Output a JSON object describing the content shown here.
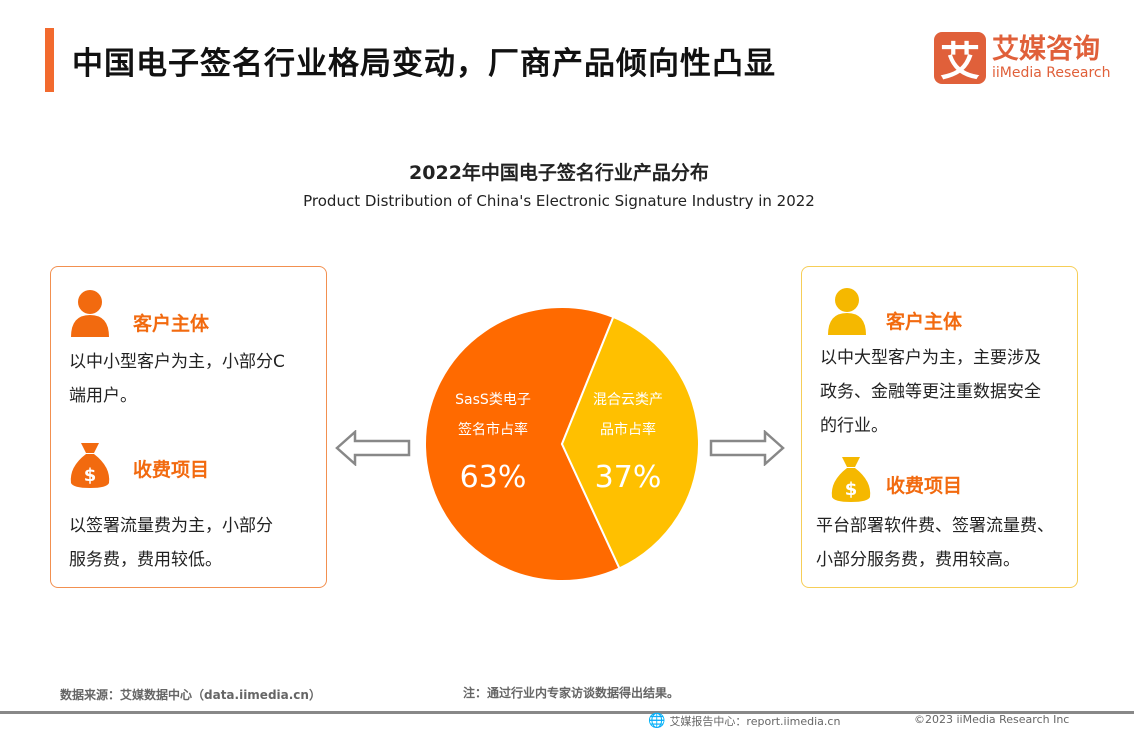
{
  "header": {
    "title": "中国电子签名行业格局变动，厂商产品倾向性凸显",
    "accent_color": "#F26A2E"
  },
  "logo": {
    "icon_text": "艾",
    "cn": "艾媒咨询",
    "en": "iiMedia Research",
    "color": "#E0603A"
  },
  "chart_data": {
    "type": "pie",
    "title": "2022年中国电子签名行业产品分布",
    "subtitle": "Product Distribution of China's Electronic Signature Industry in 2022",
    "slices": [
      {
        "label_line1": "SasS类电子",
        "label_line2": "签名市占率",
        "value": 63,
        "value_label": "63%",
        "color": "#FF6A00"
      },
      {
        "label_line1": "混合云类产",
        "label_line2": "品市占率",
        "value": 37,
        "value_label": "37%",
        "color": "#FFC000"
      }
    ]
  },
  "left_card": {
    "customer_title": "客户主体",
    "customer_icon": "person-icon",
    "customer_text": [
      "以中小型客户为主，小部分C",
      "端用户。"
    ],
    "fee_title": "收费项目",
    "fee_icon": "money-bag-icon",
    "fee_text": [
      "以签署流量费为主，小部分",
      "服务费，费用较低。"
    ],
    "color": "#F26A0F"
  },
  "right_card": {
    "customer_title": "客户主体",
    "customer_icon": "person-icon",
    "customer_text": [
      "以中大型客户为主，主要涉及",
      "政务、金融等更注重数据安全",
      "的行业。"
    ],
    "fee_title": "收费项目",
    "fee_icon": "money-bag-icon",
    "fee_text": [
      "平台部署软件费、签署流量费、",
      "小部分服务费，费用较高。"
    ],
    "color": "#F5B800"
  },
  "footer": {
    "source": "数据来源：艾媒数据中心（data.iimedia.cn）",
    "note": "注：通过行业内专家访谈数据得出结果。",
    "report": "艾媒报告中心：report.iimedia.cn",
    "copyright": "©2023  iiMedia Research  Inc"
  }
}
